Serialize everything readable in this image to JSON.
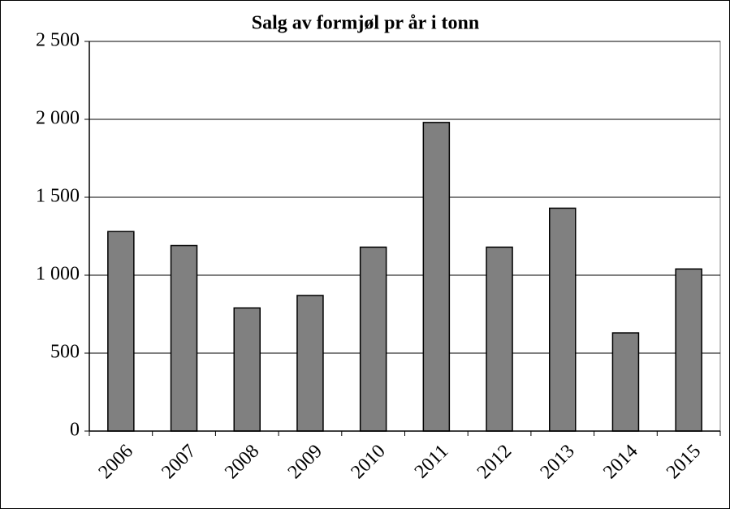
{
  "chart_data": {
    "type": "bar",
    "title": "Salg av formjøl pr år i tonn",
    "categories": [
      "2006",
      "2007",
      "2008",
      "2009",
      "2010",
      "2011",
      "2012",
      "2013",
      "2014",
      "2015"
    ],
    "values": [
      1280,
      1190,
      790,
      870,
      1180,
      1980,
      1180,
      1430,
      630,
      1040
    ],
    "color": "#808080",
    "ylim": [
      0,
      2500
    ],
    "yticks": [
      0,
      500,
      {
        "value": 1000,
        "label": "1 000"
      },
      {
        "value": 1500,
        "label": "1 500"
      },
      {
        "value": 2000,
        "label": "2 000"
      },
      {
        "value": 2500,
        "label": "2 500"
      }
    ],
    "grid": true
  }
}
